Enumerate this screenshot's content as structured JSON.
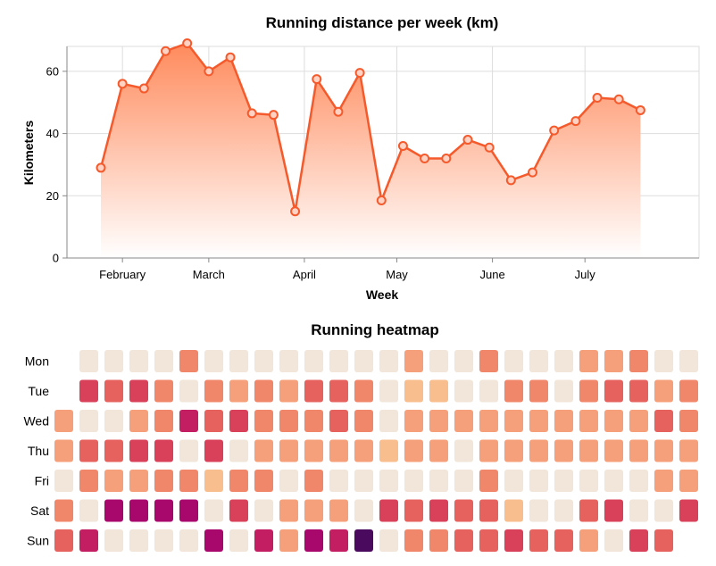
{
  "chart_data": [
    {
      "type": "area",
      "title": "Running distance per week (km)",
      "xlabel": "Week",
      "ylabel": "Kilometers",
      "ylim": [
        0,
        68
      ],
      "yticks": [
        0,
        20,
        40,
        60
      ],
      "x_tick_labels": [
        {
          "label": "February",
          "date": "2021-02-01"
        },
        {
          "label": "March",
          "date": "2021-03-01"
        },
        {
          "label": "April",
          "date": "2021-04-01"
        },
        {
          "label": "May",
          "date": "2021-05-01"
        },
        {
          "label": "June",
          "date": "2021-06-01"
        },
        {
          "label": "July",
          "date": "2021-07-01"
        }
      ],
      "xlim": [
        "2021-01-14",
        "2021-08-07"
      ],
      "grid": true,
      "colors": {
        "line": "#f55a2c",
        "fill_top": "#ff8a5c",
        "fill_bottom": "#ffffff",
        "point_fill": "#ffd2c4"
      },
      "series": [
        {
          "x": [
            "2021-01-25",
            "2021-02-01",
            "2021-02-08",
            "2021-02-15",
            "2021-02-22",
            "2021-03-01",
            "2021-03-08",
            "2021-03-15",
            "2021-03-22",
            "2021-03-29",
            "2021-04-05",
            "2021-04-12",
            "2021-04-19",
            "2021-04-26",
            "2021-05-03",
            "2021-05-10",
            "2021-05-17",
            "2021-05-24",
            "2021-05-31",
            "2021-06-07",
            "2021-06-14",
            "2021-06-21",
            "2021-06-28",
            "2021-07-05",
            "2021-07-12",
            "2021-07-19"
          ],
          "y": [
            29,
            56,
            54.5,
            66.5,
            69,
            60,
            64.5,
            46.5,
            46,
            15,
            57.5,
            47,
            59.5,
            18.5,
            36,
            32,
            32,
            38,
            35.5,
            25,
            27.5,
            41,
            44,
            51.5,
            51,
            47.5
          ]
        }
      ]
    },
    {
      "type": "heatmap",
      "title": "Running heatmap",
      "rows": [
        "Mon",
        "Tue",
        "Wed",
        "Thu",
        "Fri",
        "Sat",
        "Sun"
      ],
      "columns": 26,
      "color_scale": [
        "#f2e6da",
        "#f8be8e",
        "#f5a07a",
        "#f0866a",
        "#e6625e",
        "#d9405a",
        "#c41e62",
        "#a8086c",
        "#4a0a5e"
      ],
      "values": [
        [
          null,
          0,
          0,
          0,
          0,
          3,
          0,
          0,
          0,
          0,
          0,
          0,
          0,
          0,
          2,
          0,
          0,
          3,
          0,
          0,
          0,
          2,
          2,
          3,
          0,
          0
        ],
        [
          null,
          5,
          4,
          5,
          3,
          0,
          3,
          2,
          3,
          2,
          4,
          4,
          3,
          0,
          1,
          1,
          0,
          0,
          3,
          3,
          0,
          3,
          4,
          4,
          2,
          3
        ],
        [
          2,
          0,
          0,
          2,
          3,
          6,
          4,
          5,
          3,
          3,
          3,
          4,
          3,
          0,
          2,
          2,
          2,
          2,
          2,
          2,
          2,
          2,
          2,
          2,
          4,
          3
        ],
        [
          2,
          4,
          4,
          5,
          5,
          0,
          5,
          0,
          2,
          2,
          2,
          2,
          2,
          1,
          2,
          2,
          0,
          2,
          2,
          2,
          2,
          2,
          2,
          2,
          2,
          2
        ],
        [
          0,
          3,
          2,
          2,
          3,
          3,
          1,
          3,
          3,
          0,
          3,
          0,
          0,
          0,
          0,
          0,
          0,
          3,
          0,
          0,
          0,
          0,
          0,
          0,
          2,
          2
        ],
        [
          3,
          0,
          7,
          7,
          7,
          7,
          0,
          5,
          0,
          2,
          2,
          2,
          0,
          5,
          4,
          5,
          4,
          4,
          1,
          0,
          0,
          4,
          5,
          0,
          0,
          5
        ],
        [
          4,
          6,
          0,
          0,
          0,
          0,
          7,
          0,
          6,
          2,
          7,
          6,
          8,
          0,
          3,
          3,
          4,
          4,
          5,
          4,
          4,
          2,
          0,
          5,
          4,
          null
        ]
      ]
    }
  ]
}
